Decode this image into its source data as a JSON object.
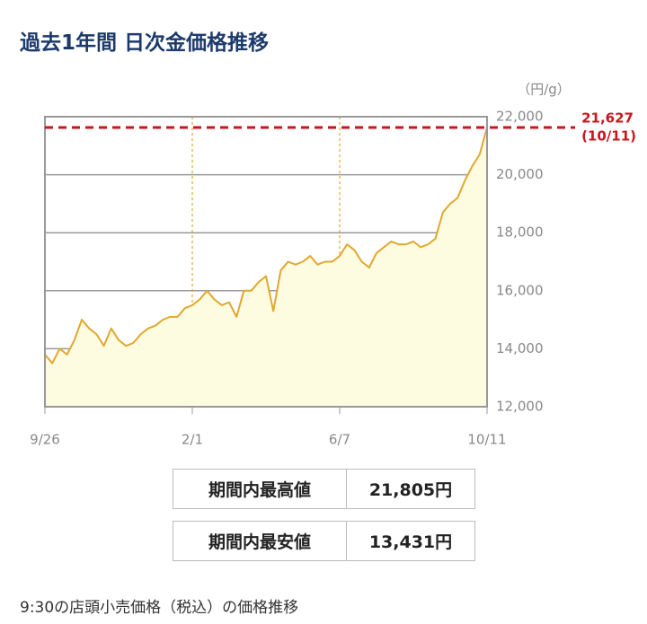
{
  "chart_data": {
    "type": "line",
    "title": "過去1年間 日次金価格推移",
    "y_unit": "（円/g）",
    "categories": [
      "9/26",
      null,
      null,
      null,
      null,
      null,
      null,
      null,
      null,
      null,
      null,
      null,
      null,
      null,
      null,
      null,
      null,
      null,
      null,
      null,
      "2/1",
      null,
      null,
      null,
      null,
      null,
      null,
      null,
      null,
      null,
      null,
      null,
      null,
      null,
      null,
      null,
      null,
      null,
      null,
      null,
      "6/7",
      null,
      null,
      null,
      null,
      null,
      null,
      null,
      null,
      null,
      null,
      null,
      null,
      null,
      null,
      null,
      null,
      null,
      null,
      null,
      "10/11"
    ],
    "series": [
      {
        "color": "#e0a82e",
        "fill": "#fdfbe0",
        "values": [
          13800,
          13500,
          14000,
          13800,
          14300,
          15000,
          14700,
          14500,
          14100,
          14700,
          14300,
          14100,
          14200,
          14500,
          14700,
          14800,
          15000,
          15100,
          15100,
          15400,
          15500,
          15700,
          16000,
          15700,
          15500,
          15600,
          15100,
          16000,
          16000,
          16300,
          16500,
          15300,
          16700,
          17000,
          16900,
          17000,
          17200,
          16900,
          17000,
          17000,
          17200,
          17600,
          17400,
          17000,
          16800,
          17300,
          17500,
          17700,
          17600,
          17600,
          17700,
          17500,
          17600,
          17800,
          18700,
          19000,
          19200,
          19800,
          20300,
          20700,
          21627
        ]
      }
    ],
    "ylim": [
      12000,
      22000
    ],
    "yticks": [
      {
        "value": 12000,
        "label": "12,000"
      },
      {
        "value": 14000,
        "label": "14,000"
      },
      {
        "value": 16000,
        "label": "16,000"
      },
      {
        "value": 18000,
        "label": "18,000"
      },
      {
        "value": 20000,
        "label": "20,000"
      },
      {
        "value": 22000,
        "label": "22,000"
      }
    ],
    "grid": true,
    "reference": {
      "value": 21627,
      "label": "21,627",
      "date": "(10/11)",
      "color": "#c8161d"
    }
  },
  "summary": {
    "rows": [
      [
        "期間内最高値",
        "21,805円"
      ],
      [
        "期間内最安値",
        "13,431円"
      ]
    ]
  },
  "note": "9:30の店頭小売価格（税込）の価格推移"
}
